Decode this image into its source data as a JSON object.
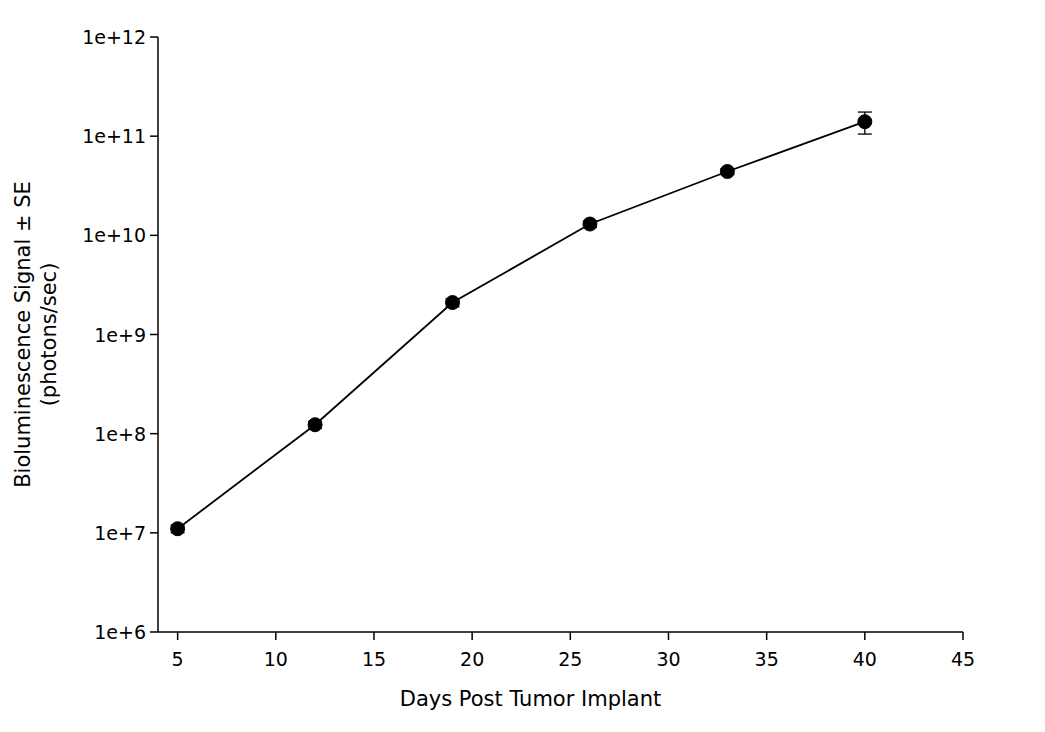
{
  "chart_data": {
    "type": "line",
    "x_label": "Days Post Tumor Implant",
    "y_label": [
      "Bioluminescence Signal ± SE",
      "(photons/sec)"
    ],
    "x": [
      5,
      12,
      19,
      26,
      33,
      40
    ],
    "series": [
      {
        "name": null,
        "color": "#000000",
        "marker": "circle",
        "line_style": "solid",
        "values": [
          11000000,
          123000000,
          2100000000,
          13000000000,
          44000000000,
          140000000000
        ],
        "errors": [
          1000000,
          10000000,
          200000000,
          1000000000,
          3000000000,
          35000000000
        ]
      }
    ],
    "log": "y",
    "xlim": [
      4,
      45
    ],
    "xticks": [
      5,
      10,
      15,
      20,
      25,
      30,
      35,
      40,
      45
    ],
    "ylim": [
      1000000,
      1000000000000
    ],
    "yticks": [
      {
        "value": 1000000,
        "label": "1e+6"
      },
      {
        "value": 10000000,
        "label": "1e+7"
      },
      {
        "value": 100000000,
        "label": "1e+8"
      },
      {
        "value": 1000000000,
        "label": "1e+9"
      },
      {
        "value": 10000000000,
        "label": "1e+10"
      },
      {
        "value": 100000000000,
        "label": "1e+11"
      },
      {
        "value": 1000000000000,
        "label": "1e+12"
      }
    ],
    "grid": false
  }
}
